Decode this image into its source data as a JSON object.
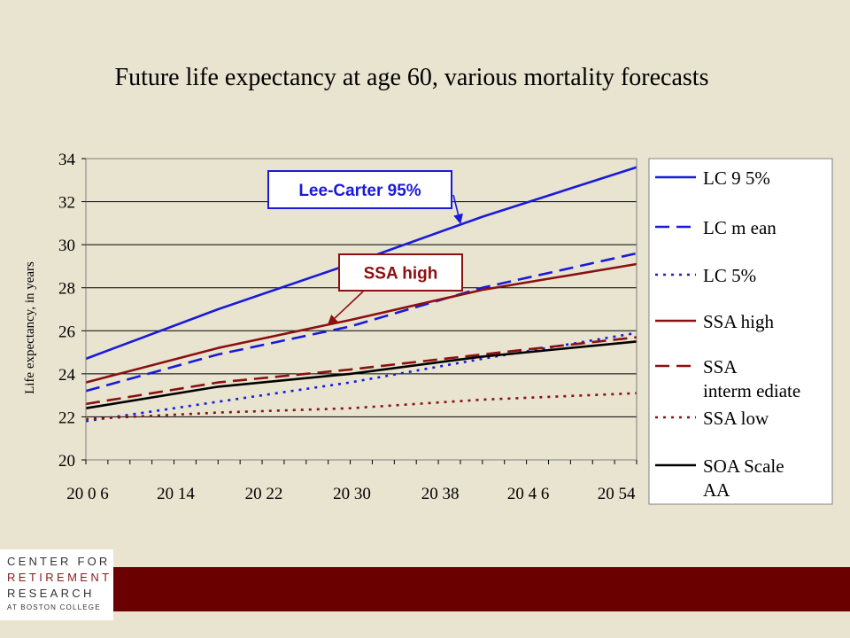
{
  "slide": {
    "title": "Future life expectancy at age 60, various mortality forecasts"
  },
  "logo": {
    "line1": "CENTER FOR",
    "line2": "RETIREMENT",
    "line3": "RESEARCH",
    "line4": "AT BOSTON COLLEGE"
  },
  "colors": {
    "background": "#e8e4d0",
    "blue": "#1a1adb",
    "maroon": "#8b1010",
    "black": "#000000",
    "footer": "#6b0000"
  },
  "chart_data": {
    "type": "line",
    "title": "",
    "ylabel": "Life expectancy, in years",
    "xlabel": "",
    "xlim": [
      2006,
      2056
    ],
    "ylim": [
      20,
      34
    ],
    "yticks": [
      20,
      22,
      24,
      26,
      28,
      30,
      32,
      34
    ],
    "xticks": [
      2006,
      2014,
      2022,
      2030,
      2038,
      2046,
      2054
    ],
    "xtick_labels": [
      "20 0 6",
      "20 14",
      "20 22",
      "20 30",
      "20 38",
      "20 4 6",
      "20 54"
    ],
    "ytick_labels": [
      "20",
      "22",
      "24",
      "26",
      "28",
      "30",
      "32",
      "34"
    ],
    "grid": "horizontal",
    "legend": "right",
    "series": [
      {
        "name": "LC 95%",
        "label": "LC 9 5%",
        "color": "#1a1adb",
        "dash": "solid",
        "x": [
          2006,
          2018,
          2030,
          2042,
          2056
        ],
        "values": [
          24.7,
          27.0,
          29.1,
          31.3,
          33.6
        ]
      },
      {
        "name": "LC mean",
        "label": "LC m ean",
        "color": "#1a1adb",
        "dash": "dashed",
        "x": [
          2006,
          2018,
          2030,
          2042,
          2056
        ],
        "values": [
          23.2,
          24.9,
          26.2,
          28.0,
          29.6
        ]
      },
      {
        "name": "LC 5%",
        "label": "LC 5%",
        "color": "#1a1adb",
        "dash": "dotted",
        "x": [
          2006,
          2018,
          2030,
          2042,
          2056
        ],
        "values": [
          21.8,
          22.7,
          23.6,
          24.7,
          25.9
        ]
      },
      {
        "name": "SSA high",
        "label": "SSA high",
        "color": "#8b1010",
        "dash": "solid",
        "x": [
          2006,
          2018,
          2030,
          2042,
          2056
        ],
        "values": [
          23.6,
          25.2,
          26.5,
          27.9,
          29.1
        ]
      },
      {
        "name": "SSA intermediate",
        "label": "SSA interm ediate",
        "color": "#8b1010",
        "dash": "dashed",
        "x": [
          2006,
          2018,
          2030,
          2042,
          2056
        ],
        "values": [
          22.6,
          23.6,
          24.2,
          24.9,
          25.7
        ]
      },
      {
        "name": "SSA low",
        "label": "SSA low",
        "color": "#8b1010",
        "dash": "dotted",
        "x": [
          2006,
          2018,
          2030,
          2042,
          2056
        ],
        "values": [
          21.9,
          22.2,
          22.4,
          22.8,
          23.1
        ]
      },
      {
        "name": "SOA Scale AA",
        "label": "SOA Scale AA",
        "color": "#000000",
        "dash": "solid",
        "x": [
          2006,
          2018,
          2030,
          2042,
          2056
        ],
        "values": [
          22.4,
          23.4,
          24.0,
          24.8,
          25.5
        ]
      }
    ],
    "annotations": [
      {
        "text": "Lee-Carter 95%",
        "color": "#1a1adb",
        "series": "LC 95%",
        "x": 2040,
        "y": 31.0
      },
      {
        "text": "SSA high",
        "color": "#8b1010",
        "series": "SSA high",
        "x": 2028,
        "y": 26.3
      }
    ]
  }
}
